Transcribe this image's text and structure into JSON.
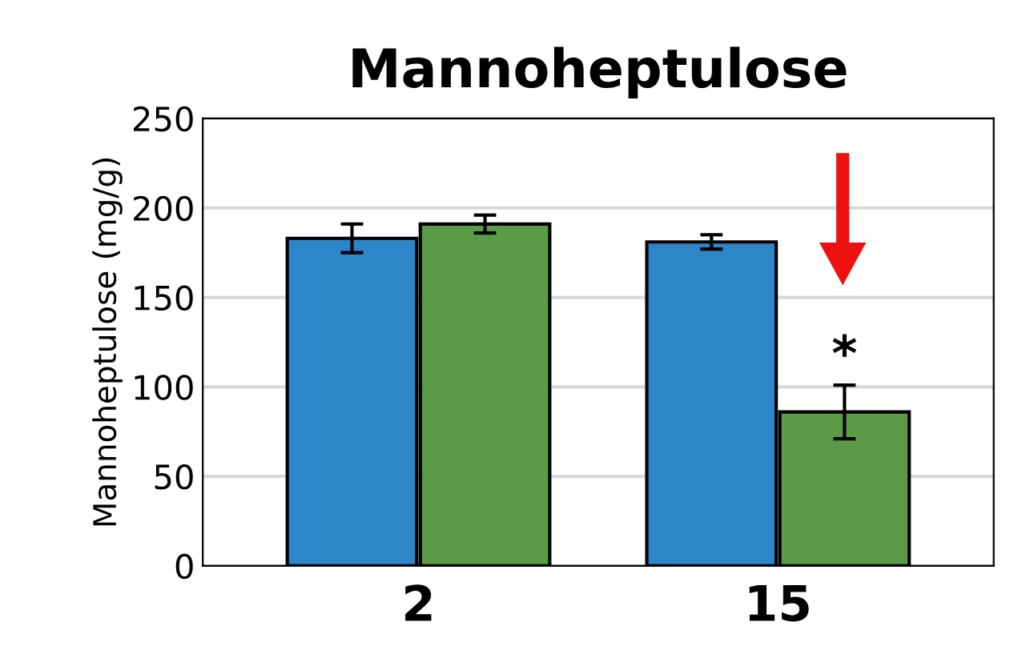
{
  "chart_data": {
    "type": "bar",
    "title": "Mannoheptulose",
    "ylabel": "Mannoheptulose (mg/g)",
    "categories": [
      "2",
      "15"
    ],
    "series": [
      {
        "color": "#2e86c8",
        "values": [
          183,
          181
        ],
        "errors": [
          8,
          4
        ]
      },
      {
        "color": "#5b9a47",
        "values": [
          191,
          86
        ],
        "errors": [
          5,
          15
        ]
      }
    ],
    "annotations": [
      {
        "text": "*",
        "x": "15",
        "y": 101
      }
    ],
    "ylim": [
      0,
      250
    ],
    "yticks": [
      0,
      50,
      100,
      150,
      200,
      250
    ],
    "grid": "y"
  }
}
